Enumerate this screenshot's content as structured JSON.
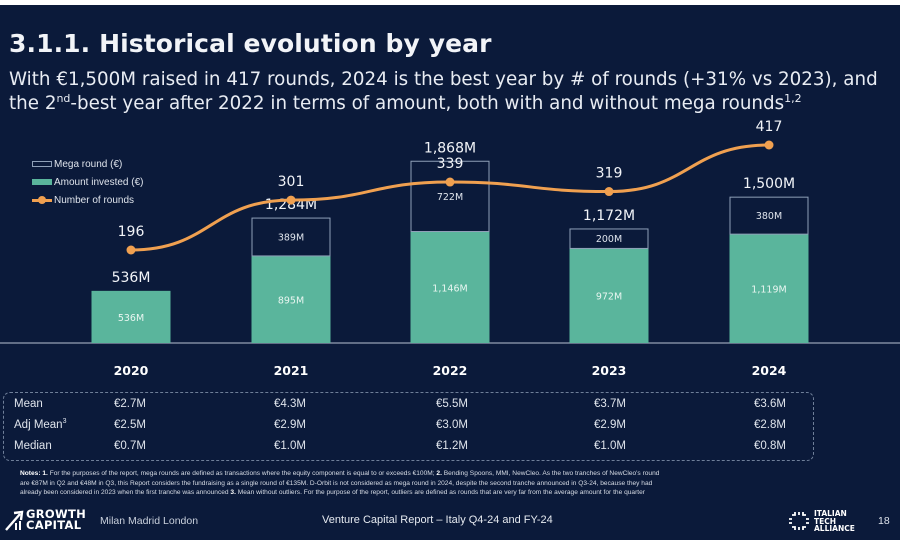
{
  "header": {
    "title": "3.1.1. Historical evolution by year",
    "subtitle_line1": "With €1,500M raised in 417 rounds, 2024 is the best year by # of rounds (+31% vs 2023), and",
    "subtitle_line2_pre": "the 2",
    "subtitle_line2_sup": "nd",
    "subtitle_line2_post": "-best year after 2022 in terms of amount, both with and without mega rounds",
    "subtitle_line2_note": "1,2"
  },
  "legend": {
    "mega": "Mega round (€)",
    "amount": "Amount invested (€)",
    "rounds": "Number of rounds"
  },
  "colors": {
    "background": "#0b1a3a",
    "amount_bar": "#5ab59c",
    "mega_outline": "#8fa0b8",
    "rounds_line": "#f0a050",
    "text": "#ffffff"
  },
  "chart_data": {
    "type": "bar",
    "title": "Historical evolution by year",
    "categories": [
      "2020",
      "2021",
      "2022",
      "2023",
      "2024"
    ],
    "series": [
      {
        "name": "Amount invested (€)",
        "kind": "stacked-bar",
        "values": [
          536,
          895,
          1146,
          972,
          1119
        ],
        "labels": [
          "536M",
          "895M",
          "1,146M",
          "972M",
          "1,119M"
        ]
      },
      {
        "name": "Mega round (€)",
        "kind": "stacked-bar",
        "values": [
          0,
          389,
          722,
          200,
          380
        ],
        "labels": [
          "",
          "389M",
          "722M",
          "200M",
          "380M"
        ]
      },
      {
        "name": "Number of rounds",
        "kind": "line",
        "values": [
          196,
          301,
          339,
          319,
          417
        ],
        "labels": [
          "196",
          "301",
          "339",
          "319",
          "417"
        ]
      }
    ],
    "totals": [
      536,
      1284,
      1868,
      1172,
      1500
    ],
    "total_labels": [
      "536M",
      "1,284M",
      "1,868M",
      "1,172M",
      "1,500M"
    ],
    "xlabel": "",
    "ylabel": "",
    "ylim": [
      0,
      2000
    ],
    "grid": false,
    "legend_position": "top-left"
  },
  "stats": {
    "rows": [
      {
        "label": "Mean",
        "label_sup": "",
        "values": [
          "€2.7M",
          "€4.3M",
          "€5.5M",
          "€3.7M",
          "€3.6M"
        ]
      },
      {
        "label": "Adj Mean",
        "label_sup": "3",
        "values": [
          "€2.5M",
          "€2.9M",
          "€3.0M",
          "€2.9M",
          "€2.8M"
        ]
      },
      {
        "label": "Median",
        "label_sup": "",
        "values": [
          "€0.7M",
          "€1.0M",
          "€1.2M",
          "€1.0M",
          "€0.8M"
        ]
      }
    ]
  },
  "notes": {
    "line1_label": "Notes:",
    "line1_n1": "1.",
    "line1_text": "For the purposes of the report, mega rounds are defined as transactions where the equity component is equal to or exceeds €100M;",
    "line1_n2": "2.",
    "line1_text2": "Bending Spoons, MMI, NewCleo. As the two tranches of NewCleo's round",
    "line2_text": "are €87M in Q2 and €48M in Q3, this Report considers the fundraising as a single round of €135M. D-Orbit is not considered as mega round in 2024, despite the second tranche announced in Q3-24, because they had",
    "line3_text": "already been considered in 2023 when the first tranche was announced",
    "line3_n3": "3.",
    "line3_text2": "Mean without outliers. For the purpose of the report, outliers are defined as rounds that are very far from the average amount for the quarter"
  },
  "footer": {
    "logo_line1": "GROWTH",
    "logo_line2": "CAPITAL",
    "cities": "Milan Madrid London",
    "report": "Venture Capital Report – Italy Q4-24 and FY-24",
    "ita_line1": "ITALIAN",
    "ita_line2": "TECH",
    "ita_line3": "ALLIANCE",
    "page": "18"
  }
}
